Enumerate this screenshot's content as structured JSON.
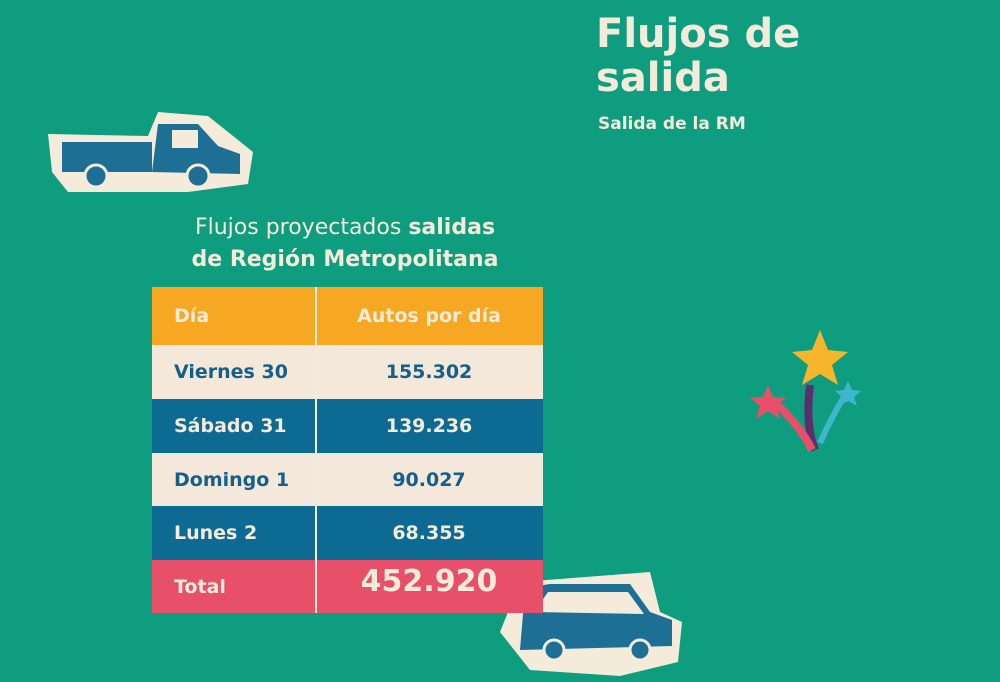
{
  "header": {
    "title": "Flujos de salida",
    "subtitle": "Salida de la RM"
  },
  "table": {
    "caption": {
      "normal": "Flujos proyectados",
      "bold_1": "salidas",
      "bold_2": "de Región Metropolitana"
    },
    "columns": [
      "Día",
      "Autos por día"
    ],
    "rows": [
      [
        "Viernes 30",
        "155.302"
      ],
      [
        "Sábado 31",
        "139.236"
      ],
      [
        "Domingo 1",
        "90.027"
      ],
      [
        "Lunes 2",
        "68.355"
      ]
    ],
    "total": [
      "Total",
      "452.920"
    ]
  }
}
